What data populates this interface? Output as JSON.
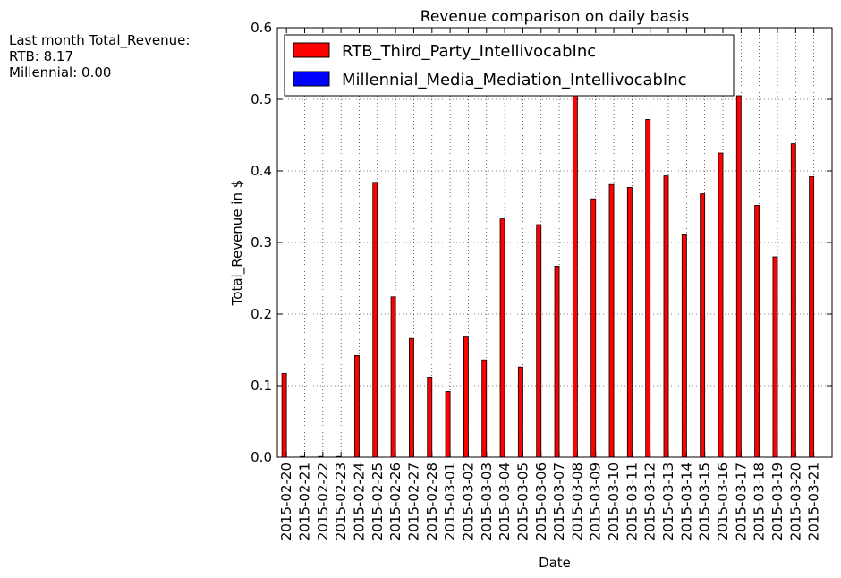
{
  "side_note": {
    "line1": "Last month Total_Revenue:",
    "line2": "RTB: 8.17",
    "line3": "Millennial: 0.00"
  },
  "colors": {
    "rtb": "#ff0000",
    "millennial": "#0000ff"
  },
  "chart_data": {
    "type": "bar",
    "title": "Revenue comparison on daily basis",
    "xlabel": "Date",
    "ylabel": "Total_Revenue in $",
    "ylim": [
      0,
      0.6
    ],
    "yticks": [
      "0.0",
      "0.1",
      "0.2",
      "0.3",
      "0.4",
      "0.5",
      "0.6"
    ],
    "grid": true,
    "legend_position": "top-left",
    "categories": [
      "2015-02-20",
      "2015-02-21",
      "2015-02-22",
      "2015-02-23",
      "2015-02-24",
      "2015-02-25",
      "2015-02-26",
      "2015-02-27",
      "2015-02-28",
      "2015-03-01",
      "2015-03-02",
      "2015-03-03",
      "2015-03-04",
      "2015-03-05",
      "2015-03-06",
      "2015-03-07",
      "2015-03-08",
      "2015-03-09",
      "2015-03-10",
      "2015-03-11",
      "2015-03-12",
      "2015-03-13",
      "2015-03-14",
      "2015-03-15",
      "2015-03-16",
      "2015-03-17",
      "2015-03-18",
      "2015-03-19",
      "2015-03-20",
      "2015-03-21"
    ],
    "series": [
      {
        "name": "RTB_Third_Party_IntellivocabInc",
        "color": "#ff0000",
        "values": [
          0.117,
          0.001,
          0.001,
          0.001,
          0.142,
          0.384,
          0.224,
          0.166,
          0.112,
          0.092,
          0.168,
          0.136,
          0.333,
          0.126,
          0.325,
          0.267,
          0.505,
          0.361,
          0.381,
          0.377,
          0.472,
          0.393,
          0.311,
          0.368,
          0.425,
          0.505,
          0.352,
          0.28,
          0.438,
          0.392
        ]
      },
      {
        "name": "Millennial_Media_Mediation_IntellivocabInc",
        "color": "#0000ff",
        "values": [
          0,
          0,
          0,
          0,
          0,
          0,
          0,
          0,
          0,
          0,
          0,
          0,
          0,
          0,
          0,
          0,
          0,
          0,
          0,
          0,
          0,
          0,
          0,
          0,
          0,
          0,
          0,
          0,
          0,
          0
        ]
      }
    ]
  }
}
